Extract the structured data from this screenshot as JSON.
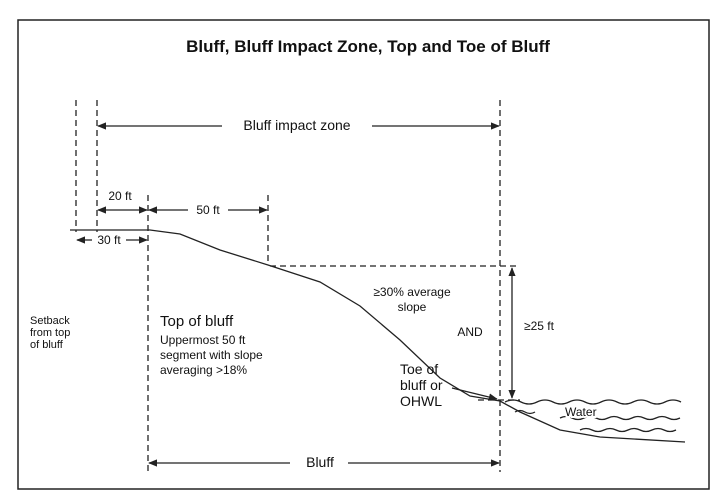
{
  "title": "Bluff, Bluff Impact Zone, Top and Toe of Bluff",
  "labels": {
    "impact_zone": "Bluff impact zone",
    "twenty_ft": "20 ft",
    "fifty_ft": "50 ft",
    "thirty_ft": "30 ft",
    "setback": [
      "Setback",
      "from top",
      "of bluff"
    ],
    "top_of_bluff": "Top of bluff",
    "top_desc": [
      "Uppermost 50 ft",
      "segment with slope",
      "averaging >18%"
    ],
    "slope": [
      "≥30% average",
      "slope"
    ],
    "and": "AND",
    "height": "≥25 ft",
    "toe": [
      "Toe of",
      "bluff or",
      "OHWL"
    ],
    "water": "Water",
    "bluff": "Bluff"
  }
}
